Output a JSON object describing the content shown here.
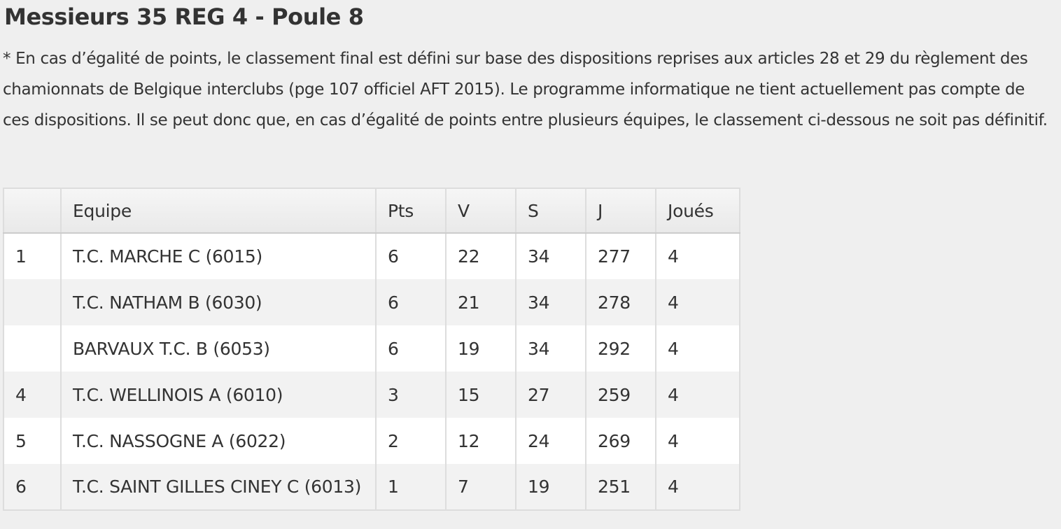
{
  "title": "Messieurs 35 REG 4 - Poule 8",
  "note": "* En cas d’égalité de points, le classement final est défini sur base des dispositions reprises aux articles 28 et 29 du règlement des chamionnats de Belgique interclubs (pge 107 officiel AFT 2015). Le programme informatique ne tient actuellement pas compte de ces dispositions. Il se peut donc que, en cas d’égalité de points entre plusieurs équipes, le classement ci-dessous ne soit pas définitif.",
  "table": {
    "headers": [
      "",
      "Equipe",
      "Pts",
      "V",
      "S",
      "J",
      "Joués"
    ],
    "rows": [
      [
        "1",
        "T.C. MARCHE C (6015)",
        "6",
        "22",
        "34",
        "277",
        "4"
      ],
      [
        "",
        "T.C. NATHAM B (6030)",
        "6",
        "21",
        "34",
        "278",
        "4"
      ],
      [
        "",
        "BARVAUX T.C. B (6053)",
        "6",
        "19",
        "34",
        "292",
        "4"
      ],
      [
        "4",
        "T.C. WELLINOIS A (6010)",
        "3",
        "15",
        "27",
        "259",
        "4"
      ],
      [
        "5",
        "T.C. NASSOGNE A (6022)",
        "2",
        "12",
        "24",
        "269",
        "4"
      ],
      [
        "6",
        "T.C. SAINT GILLES CINEY C (6013)",
        "1",
        "7",
        "19",
        "251",
        "4"
      ]
    ]
  }
}
